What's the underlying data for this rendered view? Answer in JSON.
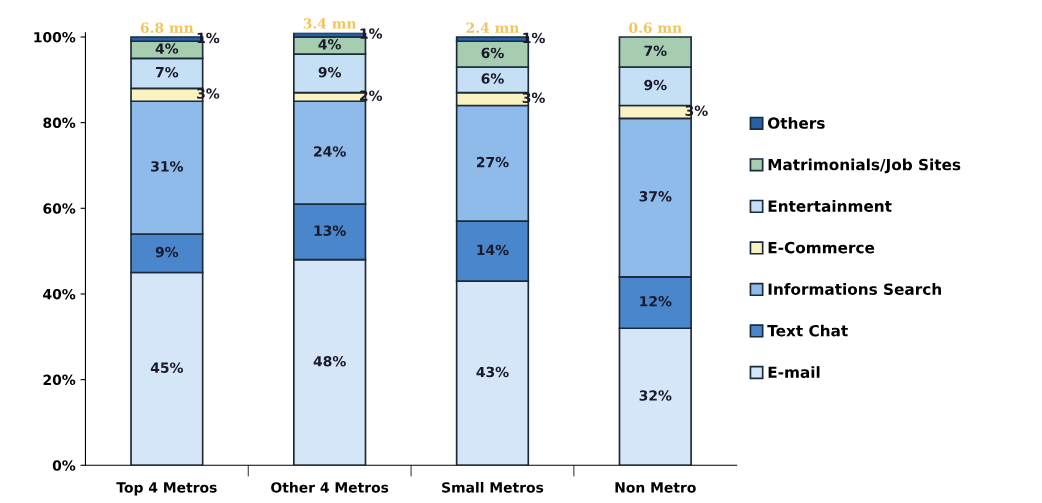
{
  "chart_data": {
    "type": "bar",
    "stacked": true,
    "categories": [
      "Top 4 Metros",
      "Other 4 Metros",
      "Small Metros",
      "Non Metro"
    ],
    "series": [
      {
        "name": "E-mail",
        "color": "#d4e6f8",
        "values": [
          45,
          48,
          43,
          32
        ],
        "value_labels": [
          "45%",
          "48%",
          "43%",
          "32%"
        ]
      },
      {
        "name": "Text Chat",
        "color": "#4a86cc",
        "values": [
          9,
          13,
          14,
          12
        ],
        "value_labels": [
          "9%",
          "13%",
          "14%",
          "12%"
        ]
      },
      {
        "name": "Informations Search",
        "color": "#8fbbea",
        "values": [
          31,
          24,
          27,
          37
        ],
        "value_labels": [
          "31%",
          "24%",
          "27%",
          "37%"
        ]
      },
      {
        "name": "E-Commerce",
        "color": "#fbf2c2",
        "values": [
          3,
          2,
          3,
          3
        ],
        "value_labels": [
          "3%",
          "2%",
          "3%",
          "3%"
        ]
      },
      {
        "name": "Entertainment",
        "color": "#c5dff4",
        "values": [
          7,
          9,
          6,
          9
        ],
        "value_labels": [
          "7%",
          "9%",
          "6%",
          "9%"
        ]
      },
      {
        "name": "Matrimonials/Job Sites",
        "color": "#a7cdb0",
        "values": [
          4,
          4,
          6,
          7
        ],
        "value_labels": [
          "4%",
          "4%",
          "6%",
          "7%"
        ]
      },
      {
        "name": "Others",
        "color": "#2660a8",
        "values": [
          1,
          1,
          1,
          null
        ],
        "value_labels": [
          "1%",
          "1%",
          "1%",
          null
        ]
      }
    ],
    "annotations": [
      {
        "text": "6.8 mn",
        "x": "Top 4 Metros",
        "y": 100
      },
      {
        "text": "3.4 mn",
        "x": "Other 4 Metros",
        "y": 101
      },
      {
        "text": "2.4 mn",
        "x": "Small Metros",
        "y": 100
      },
      {
        "text": "0.6 mn",
        "x": "Non Metro",
        "y": 100
      }
    ],
    "ylim": [
      0,
      101
    ],
    "yticks": [
      {
        "value": 0,
        "label": "0%"
      },
      {
        "value": 20,
        "label": "20%"
      },
      {
        "value": 40,
        "label": "40%"
      },
      {
        "value": 60,
        "label": "60%"
      },
      {
        "value": 80,
        "label": "80%"
      },
      {
        "value": 100,
        "label": "100%"
      }
    ],
    "grid": false,
    "legend": "right"
  }
}
